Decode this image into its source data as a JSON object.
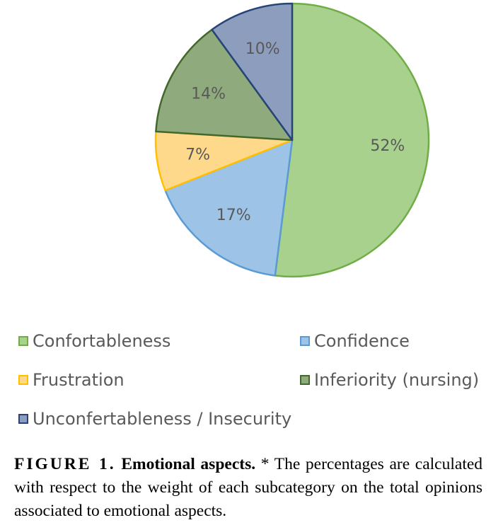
{
  "chart_data": {
    "type": "pie",
    "title": "",
    "slices": [
      {
        "name": "Confortableness",
        "value": 52,
        "label": "52%",
        "fill": "#a9d18e",
        "stroke": "#70ad47"
      },
      {
        "name": "Confidence",
        "value": 17,
        "label": "17%",
        "fill": "#9dc3e6",
        "stroke": "#5b9bd5"
      },
      {
        "name": "Frustration",
        "value": 7,
        "label": "7%",
        "fill": "#ffd98b",
        "stroke": "#ffc000"
      },
      {
        "name": "Inferiority (nursing)",
        "value": 14,
        "label": "14%",
        "fill": "#8faa7c",
        "stroke": "#43682b"
      },
      {
        "name": "Unconfertableness / Insecurity",
        "value": 10,
        "label": "10%",
        "fill": "#8d9dbd",
        "stroke": "#264478"
      }
    ],
    "legend_position": "bottom"
  },
  "caption": {
    "label": "FIGURE 1.",
    "title": "Emotional aspects.",
    "text": "* The percentages are calculated with respect to the weight of each subcategory on the total opinions associated to emotional aspects."
  }
}
